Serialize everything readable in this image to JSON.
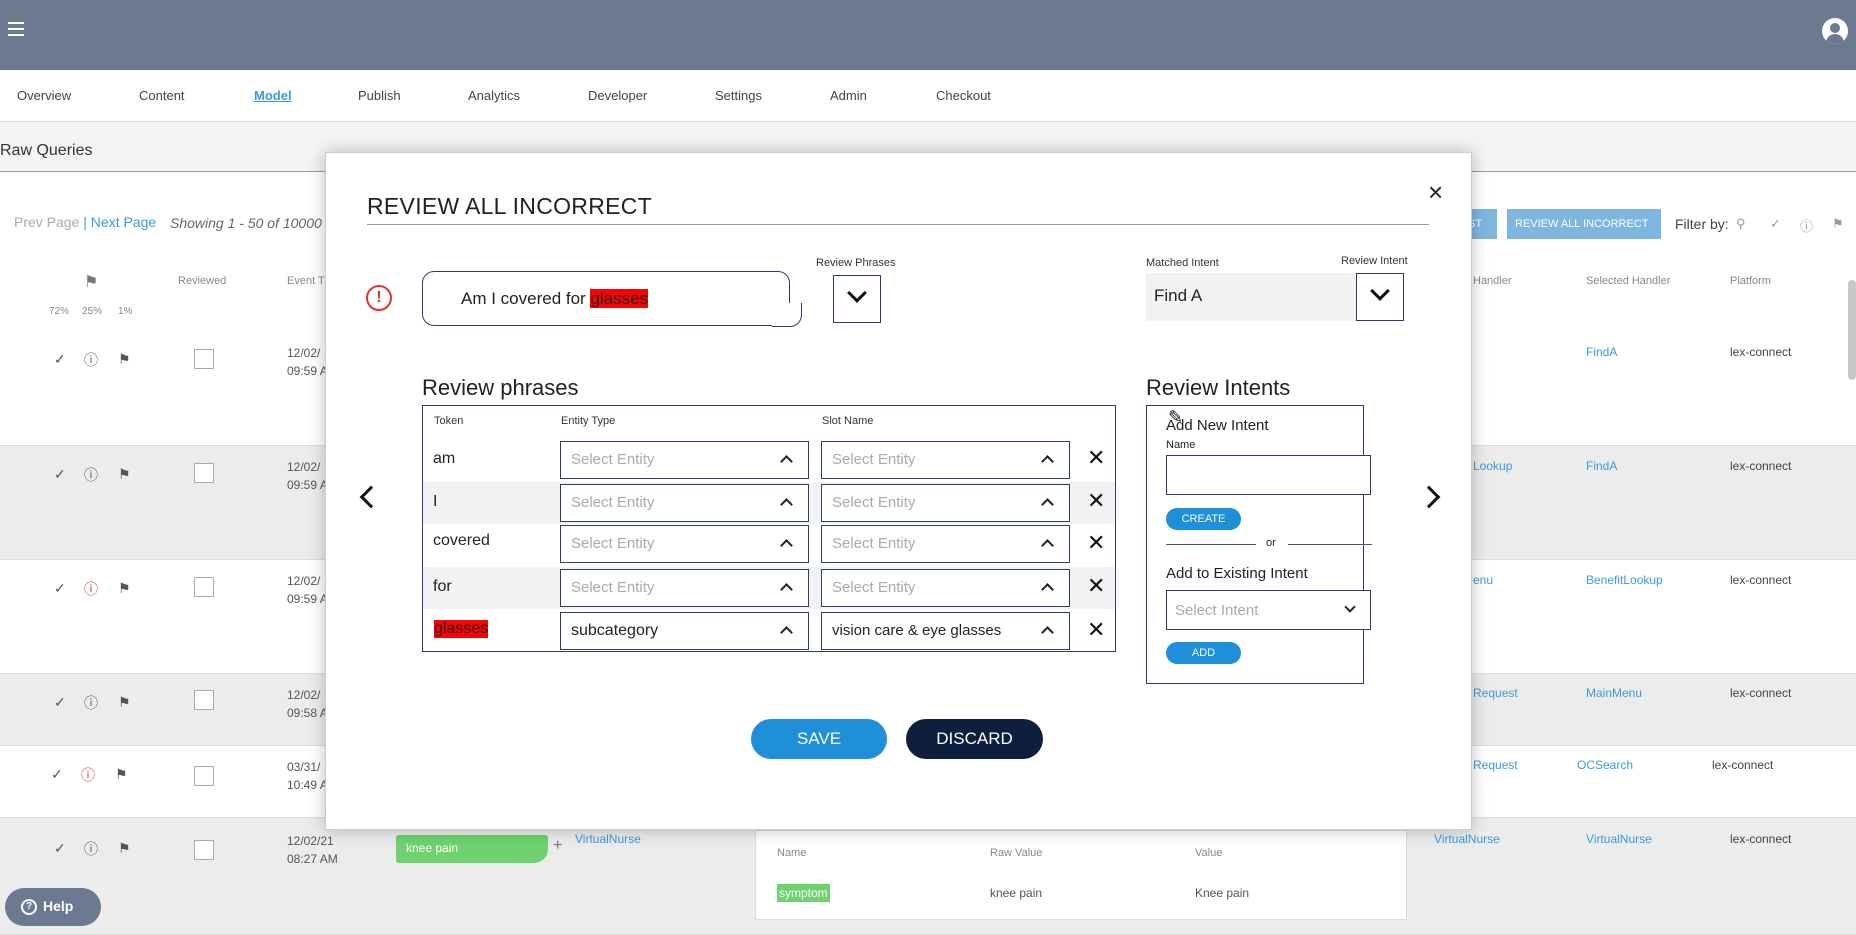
{
  "nav": {
    "items": [
      "Overview",
      "Content",
      "Model",
      "Publish",
      "Analytics",
      "Developer",
      "Settings",
      "Admin",
      "Checkout"
    ],
    "active": "Model"
  },
  "page": {
    "title": "Raw Queries",
    "prev_page": "Prev Page",
    "separator": "|",
    "next_page": "Next Page",
    "showing": "Showing 1 - 50 of 10000",
    "btn_partial": "ST",
    "review_all_btn": "REVIEW ALL INCORRECT",
    "filter_by": "Filter by:",
    "columns": {
      "reviewed": "Reviewed",
      "event": "Event T",
      "handler": "Handler",
      "selected_handler": "Selected Handler",
      "platform": "Platform"
    },
    "stats": [
      "72%",
      "25%",
      "1%"
    ],
    "rows": [
      {
        "date": "12/02/",
        "time": "09:59 A",
        "handler": "",
        "selected": "FindA",
        "platform": "lex-connect"
      },
      {
        "date": "12/02/",
        "time": "09:59 A",
        "handler": "Lookup",
        "selected": "FindA",
        "platform": "lex-connect"
      },
      {
        "date": "12/02/",
        "time": "09:59 A",
        "handler": "enu",
        "selected": "BenefitLookup",
        "platform": "lex-connect"
      },
      {
        "date": "12/02/",
        "time": "09:58 A",
        "handler": "Request",
        "selected": "MainMenu",
        "platform": "lex-connect"
      },
      {
        "date": "03/31/",
        "time": "10:49 A",
        "handler": "Request",
        "selected": "OCSearch",
        "platform": "lex-connect"
      },
      {
        "date": "12/02/21",
        "time": "08:27 AM",
        "handler": "VirtualNurse",
        "selected": "VirtualNurse",
        "platform": "lex-connect"
      }
    ],
    "chip": "knee pain",
    "chip_handler": "VirtualNurse",
    "sub": {
      "name_h": "Name",
      "raw_h": "Raw Value",
      "value_h": "Value",
      "name": "symptom",
      "raw": "knee pain",
      "value": "Knee pain"
    },
    "help": "Help"
  },
  "modal": {
    "title": "REVIEW ALL INCORRECT",
    "close": "×",
    "query_prefix": "Am I covered for ",
    "query_highlight": "glasses",
    "review_phrases_label": "Review Phrases",
    "matched_intent_label": "Matched Intent",
    "review_intent_label": "Review Intent",
    "matched_intent": "Find A",
    "review_phrases_title": "Review phrases",
    "review_intents_title": "Review Intents",
    "headers": {
      "token": "Token",
      "entity": "Entity Type",
      "slot": "Slot Name"
    },
    "rows": [
      {
        "token": "am",
        "entity": "Select Entity",
        "slot": "Select Entity"
      },
      {
        "token": "I",
        "entity": "Select Entity",
        "slot": "Select Entity"
      },
      {
        "token": "covered",
        "entity": "Select Entity",
        "slot": "Select Entity"
      },
      {
        "token": "for",
        "entity": "Select Entity",
        "slot": "Select Entity"
      },
      {
        "token": "glasses",
        "entity": "subcategory",
        "slot": "vision care & eye glasses"
      }
    ],
    "remove": "✕",
    "add_new_intent": "Add New Intent",
    "name_label": "Name",
    "name_value": "",
    "create": "CREATE",
    "or": "or",
    "add_existing": "Add to Existing Intent",
    "select_intent": "Select Intent",
    "add": "ADD",
    "save": "SAVE",
    "discard": "DISCARD"
  }
}
